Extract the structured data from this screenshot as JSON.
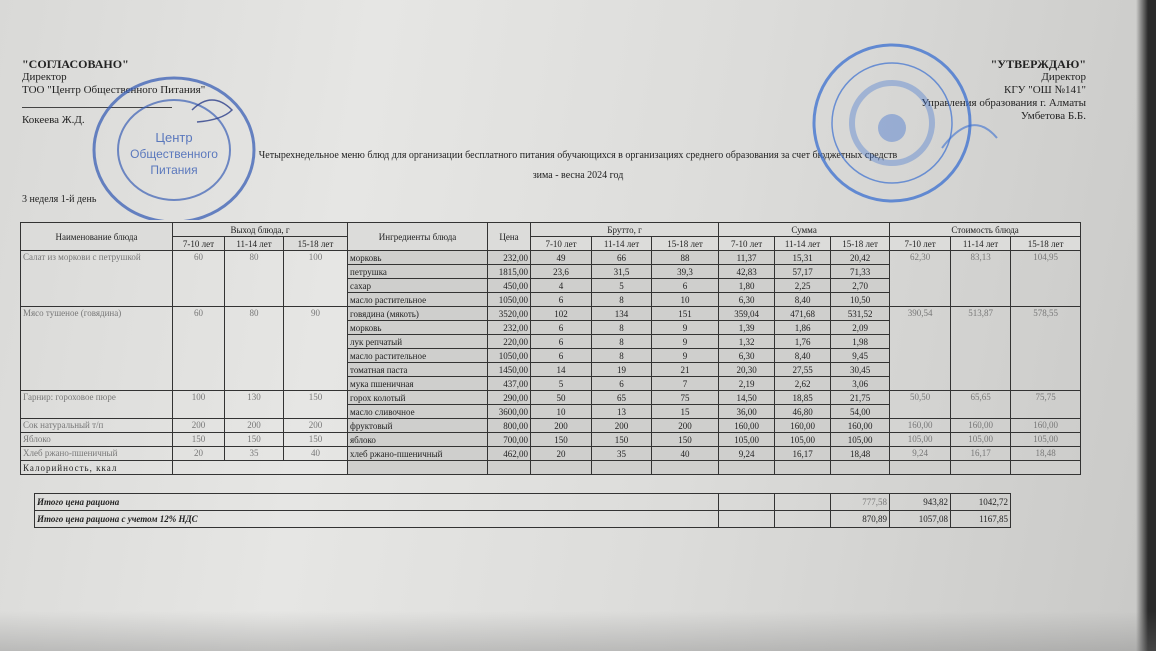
{
  "approved_left": {
    "title": "\"СОГЛАСОВАНО\"",
    "position": "Директор",
    "org": "ТОО \"Центр Общественного Питания\"",
    "signatory": "Кокеева Ж.Д."
  },
  "approved_right": {
    "title": "\"УТВЕРЖДАЮ\"",
    "position": "Директор",
    "org": "КГУ \"ОШ №141\"",
    "dept": "Управления образования г. Алматы",
    "signatory": "Умбетова Б.Б."
  },
  "doc_title": "Четырехнедельное меню блюд для организации бесплатного питания обучающихся в организациях среднего образования за счет бюджетных средств",
  "season": "зима - весна 2024 год",
  "week_day": "3 неделя 1-й день",
  "stamps": {
    "left": "\"Центр Общественного Питания\"",
    "left_color": "#3a5fb5",
    "right_color": "#3a6fd0"
  },
  "table": {
    "headers": {
      "dish": "Наименование блюда",
      "yield": "Выход блюда, г",
      "ingredients": "Ингредиенты блюда",
      "price": "Цена",
      "brutto": "Брутто, г",
      "sum": "Сумма",
      "cost": "Стоимость блюда",
      "ages": [
        "7-10 лет",
        "11-14 лет",
        "15-18 лет"
      ]
    },
    "dishes": [
      {
        "name": "Салат из моркови с петрушкой",
        "yield": [
          "60",
          "80",
          "100"
        ],
        "cost": [
          "62,30",
          "83,13",
          "104,95"
        ],
        "ingredients": [
          {
            "name": "морковь",
            "price": "232,00",
            "brutto": [
              "49",
              "66",
              "88"
            ],
            "sum": [
              "11,37",
              "15,31",
              "20,42"
            ]
          },
          {
            "name": "петрушка",
            "price": "1815,00",
            "brutto": [
              "23,6",
              "31,5",
              "39,3"
            ],
            "sum": [
              "42,83",
              "57,17",
              "71,33"
            ]
          },
          {
            "name": "сахар",
            "price": "450,00",
            "brutto": [
              "4",
              "5",
              "6"
            ],
            "sum": [
              "1,80",
              "2,25",
              "2,70"
            ]
          },
          {
            "name": "масло растительное",
            "price": "1050,00",
            "brutto": [
              "6",
              "8",
              "10"
            ],
            "sum": [
              "6,30",
              "8,40",
              "10,50"
            ]
          }
        ]
      },
      {
        "name": "Мясо тушеное (говядина)",
        "yield": [
          "60",
          "80",
          "90"
        ],
        "cost": [
          "390,54",
          "513,87",
          "578,55"
        ],
        "ingredients": [
          {
            "name": "говядина (мякоть)",
            "price": "3520,00",
            "brutto": [
              "102",
              "134",
              "151"
            ],
            "sum": [
              "359,04",
              "471,68",
              "531,52"
            ]
          },
          {
            "name": "морковь",
            "price": "232,00",
            "brutto": [
              "6",
              "8",
              "9"
            ],
            "sum": [
              "1,39",
              "1,86",
              "2,09"
            ]
          },
          {
            "name": "лук репчатый",
            "price": "220,00",
            "brutto": [
              "6",
              "8",
              "9"
            ],
            "sum": [
              "1,32",
              "1,76",
              "1,98"
            ]
          },
          {
            "name": "масло растительное",
            "price": "1050,00",
            "brutto": [
              "6",
              "8",
              "9"
            ],
            "sum": [
              "6,30",
              "8,40",
              "9,45"
            ]
          },
          {
            "name": "томатная паста",
            "price": "1450,00",
            "brutto": [
              "14",
              "19",
              "21"
            ],
            "sum": [
              "20,30",
              "27,55",
              "30,45"
            ]
          },
          {
            "name": "мука пшеничная",
            "price": "437,00",
            "brutto": [
              "5",
              "6",
              "7"
            ],
            "sum": [
              "2,19",
              "2,62",
              "3,06"
            ]
          }
        ]
      },
      {
        "name": "Гарнир: гороховое пюре",
        "yield": [
          "100",
          "130",
          "150"
        ],
        "cost": [
          "50,50",
          "65,65",
          "75,75"
        ],
        "ingredients": [
          {
            "name": "горох колотый",
            "price": "290,00",
            "brutto": [
              "50",
              "65",
              "75"
            ],
            "sum": [
              "14,50",
              "18,85",
              "21,75"
            ]
          },
          {
            "name": "масло сливочное",
            "price": "3600,00",
            "brutto": [
              "10",
              "13",
              "15"
            ],
            "sum": [
              "36,00",
              "46,80",
              "54,00"
            ]
          }
        ]
      },
      {
        "name": "Сок натуральный т/п",
        "yield": [
          "200",
          "200",
          "200"
        ],
        "cost": [
          "160,00",
          "160,00",
          "160,00"
        ],
        "ingredients": [
          {
            "name": "фруктовый",
            "price": "800,00",
            "brutto": [
              "200",
              "200",
              "200"
            ],
            "sum": [
              "160,00",
              "160,00",
              "160,00"
            ]
          }
        ]
      },
      {
        "name": "Яблоко",
        "yield": [
          "150",
          "150",
          "150"
        ],
        "cost": [
          "105,00",
          "105,00",
          "105,00"
        ],
        "ingredients": [
          {
            "name": "яблоко",
            "price": "700,00",
            "brutto": [
              "150",
              "150",
              "150"
            ],
            "sum": [
              "105,00",
              "105,00",
              "105,00"
            ]
          }
        ]
      },
      {
        "name": "Хлеб ржано-пшеничный",
        "yield": [
          "20",
          "35",
          "40"
        ],
        "cost": [
          "9,24",
          "16,17",
          "18,48"
        ],
        "ingredients": [
          {
            "name": "хлеб ржано-пшеничный",
            "price": "462,00",
            "brutto": [
              "20",
              "35",
              "40"
            ],
            "sum": [
              "9,24",
              "16,17",
              "18,48"
            ]
          }
        ]
      }
    ],
    "calories_label": "Калорийность, ккал"
  },
  "totals": {
    "total_label": "Итого цена рациона",
    "total": [
      "777,58",
      "943,82",
      "1042,72"
    ],
    "vat_label": "Итого цена рациона с учетом 12% НДС",
    "vat_total": [
      "870,89",
      "1057,08",
      "1167,85"
    ]
  }
}
